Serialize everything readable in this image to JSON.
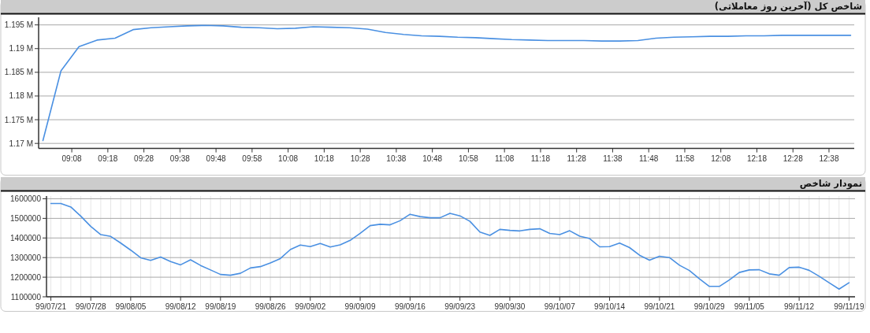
{
  "chart_data": [
    {
      "type": "line",
      "title": "شاخص کل (آخرین روز معاملاتی)",
      "grid": "y",
      "x": [
        9,
        9.0833,
        9.1667,
        9.25,
        9.3333,
        9.4167,
        9.5,
        9.5833,
        9.6667,
        9.75,
        9.8333,
        9.9167,
        10,
        10.0833,
        10.1667,
        10.25,
        10.3333,
        10.4167,
        10.5,
        10.5833,
        10.6667,
        10.75,
        10.8333,
        10.9167,
        11,
        11.0833,
        11.1667,
        11.25,
        11.3333,
        11.4167,
        11.5,
        11.5833,
        11.6667,
        11.75,
        11.8333,
        11.9167,
        12,
        12.0833,
        12.1667,
        12.25,
        12.3333,
        12.4167,
        12.5,
        12.5833,
        12.6667,
        12.7333
      ],
      "series": [
        {
          "color": "#4a90e2",
          "values": [
            1170600,
            1185300,
            1190400,
            1191800,
            1192200,
            1194000,
            1194400,
            1194600,
            1194800,
            1194900,
            1194800,
            1194500,
            1194400,
            1194200,
            1194300,
            1194600,
            1194500,
            1194400,
            1194100,
            1193400,
            1193000,
            1192700,
            1192600,
            1192400,
            1192300,
            1192100,
            1191900,
            1191800,
            1191700,
            1191700,
            1191700,
            1191600,
            1191600,
            1191700,
            1192200,
            1192400,
            1192500,
            1192600,
            1192600,
            1192700,
            1192700,
            1192800,
            1192800,
            1192800,
            1192800,
            1192800
          ]
        }
      ],
      "xlim": [
        8.98,
        12.75
      ],
      "ylim": [
        1168930,
        1196600
      ],
      "xticks": [
        {
          "value": 9.1333,
          "label": "09:08"
        },
        {
          "value": 9.3,
          "label": "09:18"
        },
        {
          "value": 9.4667,
          "label": "09:28"
        },
        {
          "value": 9.6333,
          "label": "09:38"
        },
        {
          "value": 9.8,
          "label": "09:48"
        },
        {
          "value": 9.9667,
          "label": "09:58"
        },
        {
          "value": 10.1333,
          "label": "10:08"
        },
        {
          "value": 10.3,
          "label": "10:18"
        },
        {
          "value": 10.4667,
          "label": "10:28"
        },
        {
          "value": 10.6333,
          "label": "10:38"
        },
        {
          "value": 10.8,
          "label": "10:48"
        },
        {
          "value": 10.9667,
          "label": "10:58"
        },
        {
          "value": 11.1333,
          "label": "11:08"
        },
        {
          "value": 11.3,
          "label": "11:18"
        },
        {
          "value": 11.4667,
          "label": "11:28"
        },
        {
          "value": 11.6333,
          "label": "11:38"
        },
        {
          "value": 11.8,
          "label": "11:48"
        },
        {
          "value": 11.9667,
          "label": "11:58"
        },
        {
          "value": 12.1333,
          "label": "12:08"
        },
        {
          "value": 12.3,
          "label": "12:18"
        },
        {
          "value": 12.4667,
          "label": "12:28"
        },
        {
          "value": 12.6333,
          "label": "12:38"
        }
      ],
      "yticks": [
        {
          "value": 1170000,
          "label": "1.17 M"
        },
        {
          "value": 1175000,
          "label": "1.175 M"
        },
        {
          "value": 1180000,
          "label": "1.18 M"
        },
        {
          "value": 1185000,
          "label": "1.185 M"
        },
        {
          "value": 1190000,
          "label": "1.19 M"
        },
        {
          "value": 1195000,
          "label": "1.195 M"
        }
      ]
    },
    {
      "type": "line",
      "title": "نمودار شاخص",
      "grid": true,
      "categories": [
        "99/07/21",
        null,
        null,
        null,
        "99/07/28",
        null,
        null,
        null,
        "99/08/05",
        null,
        null,
        null,
        null,
        "99/08/12",
        null,
        null,
        null,
        "99/08/19",
        null,
        null,
        null,
        null,
        "99/08/26",
        null,
        null,
        null,
        "99/09/02",
        null,
        null,
        null,
        null,
        "99/09/09",
        null,
        null,
        null,
        null,
        "99/09/16",
        null,
        null,
        null,
        null,
        "99/09/23",
        null,
        null,
        null,
        null,
        "99/09/30",
        null,
        null,
        null,
        null,
        "99/10/07",
        null,
        null,
        null,
        null,
        "99/10/14",
        null,
        null,
        null,
        null,
        "99/10/21",
        null,
        null,
        null,
        null,
        "99/10/29",
        null,
        null,
        null,
        "99/11/05",
        null,
        null,
        null,
        null,
        "99/11/12",
        null,
        null,
        null,
        null,
        "99/11/19"
      ],
      "series": [
        {
          "color": "#4a90e2",
          "values": [
            1576000,
            1576000,
            1558000,
            1511000,
            1459000,
            1417000,
            1408000,
            1374000,
            1338000,
            1299000,
            1286000,
            1303000,
            1280000,
            1263000,
            1289000,
            1260000,
            1237000,
            1214000,
            1210000,
            1220000,
            1247000,
            1254000,
            1273000,
            1295000,
            1341000,
            1364000,
            1356000,
            1372000,
            1354000,
            1365000,
            1388000,
            1424000,
            1463000,
            1470000,
            1467000,
            1488000,
            1521000,
            1509000,
            1503000,
            1503000,
            1526000,
            1513000,
            1485000,
            1430000,
            1413000,
            1444000,
            1439000,
            1436000,
            1444000,
            1447000,
            1423000,
            1417000,
            1437000,
            1409000,
            1397000,
            1355000,
            1356000,
            1374000,
            1351000,
            1312000,
            1287000,
            1307000,
            1300000,
            1261000,
            1234000,
            1192000,
            1153000,
            1153000,
            1186000,
            1224000,
            1237000,
            1238000,
            1217000,
            1210000,
            1249000,
            1251000,
            1235000,
            1205000,
            1172000,
            1139000,
            1172000
          ]
        }
      ],
      "ylim": [
        1100000,
        1614000
      ],
      "yticks": [
        1100000,
        1200000,
        1300000,
        1400000,
        1500000,
        1600000
      ]
    }
  ]
}
